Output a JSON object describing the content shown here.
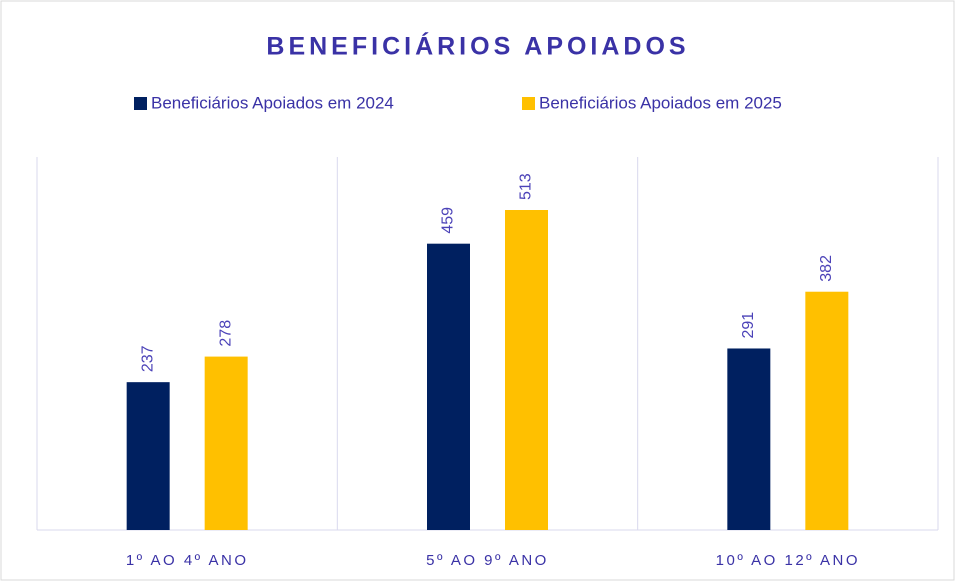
{
  "chart_data": {
    "type": "bar",
    "title": "BENEFICIÁRIOS APOIADOS",
    "categories": [
      "1º AO 4º ANO",
      "5º AO 9º ANO",
      "10º AO 12º ANO"
    ],
    "series": [
      {
        "name": "Beneficiários Apoiados em 2024",
        "color": "#002060",
        "values": [
          237,
          459,
          291
        ]
      },
      {
        "name": "Beneficiários Apoiados em 2025",
        "color": "#FFC000",
        "values": [
          278,
          513,
          382
        ]
      }
    ],
    "legend": "top",
    "grid": "vertical"
  }
}
